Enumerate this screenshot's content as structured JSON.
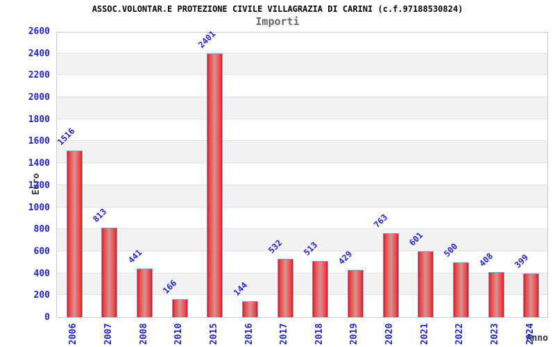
{
  "chart_data": {
    "type": "bar",
    "title": "ASSOC.VOLONTAR.E PROTEZIONE CIVILE VILLAGRAZIA DI CARINI (c.f.97188530824)",
    "subtitle": "Importi",
    "xlabel": "Anno",
    "ylabel": "Euro",
    "categories": [
      "2006",
      "2007",
      "2008",
      "2010",
      "2015",
      "2016",
      "2017",
      "2018",
      "2019",
      "2020",
      "2021",
      "2022",
      "2023",
      "2024"
    ],
    "values": [
      1516,
      813,
      441,
      166,
      2401,
      144,
      532,
      513,
      429,
      763,
      601,
      500,
      408,
      399
    ],
    "ylim": [
      0,
      2600
    ],
    "ytick_step": 200,
    "grid": true,
    "grid_style": "horizontal gridlines every 200 with alternating white and light-gray bands",
    "legend": false,
    "colors": {
      "label_blue": "#2323cc",
      "title_color": "#000000",
      "subtitle_color": "#666666",
      "axis_label_dark": "#333333",
      "bar_edge": "#e8101c",
      "bar_bright": "#ef4444",
      "bar_center": "#d49494",
      "bar_border": "#69a1d8",
      "band_gray": "#f2f2f2",
      "grid_line": "#e0e0e0",
      "plot_border": "#c9c9c9",
      "background": "#ffffff"
    }
  }
}
